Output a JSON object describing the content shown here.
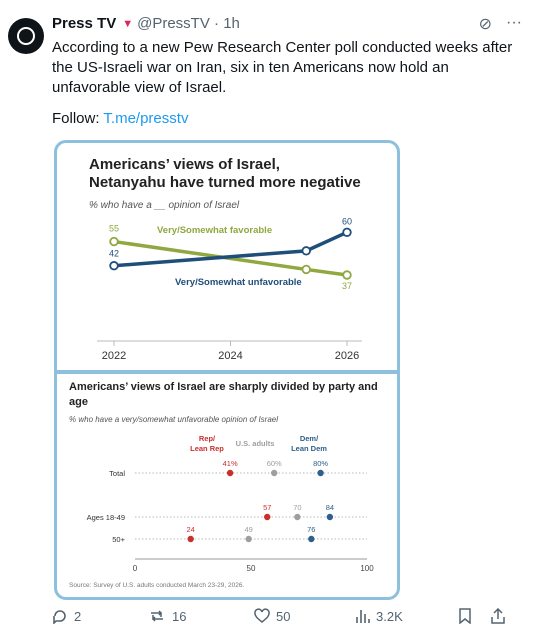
{
  "tweet": {
    "author_name": "Press TV",
    "handle": "@PressTV",
    "time": "1h",
    "text": "According to a new Pew Research Center poll conducted weeks after the US-Israeli war on Iran, six in ten Americans now hold an unfavorable view of Israel.",
    "follow_label": "Follow:",
    "follow_link": "T.me/presstv"
  },
  "actions": {
    "replies": "2",
    "reposts": "16",
    "likes": "50",
    "views": "3.2K"
  },
  "chart_data": [
    {
      "type": "line",
      "title": "Americans’ views of Israel, Netanyahu have turned more negative",
      "subtitle": "% who have a __ opinion of Israel",
      "x": [
        2022,
        2025.3,
        2026
      ],
      "xticks": [
        2022,
        2024,
        2026
      ],
      "series": [
        {
          "name": "Very/Somewhat favorable",
          "values": [
            55,
            40,
            37
          ],
          "labels": [
            "55",
            "",
            "37"
          ],
          "color": "#8fa840"
        },
        {
          "name": "Very/Somewhat unfavorable",
          "values": [
            42,
            50,
            60
          ],
          "labels": [
            "42",
            "",
            "60"
          ],
          "color": "#1f4e79"
        }
      ],
      "ylim": [
        30,
        65
      ],
      "grid": false
    },
    {
      "type": "scatter",
      "title": "Americans’ views of Israel are sharply divided by party and age",
      "subtitle": "% who have a very/somewhat unfavorable opinion of Israel",
      "legend": [
        "Rep/ Lean Rep",
        "U.S. adults",
        "Dem/ Lean Dem"
      ],
      "series_colors": [
        "#c9302c",
        "#9e9e9e",
        "#2f5f8a"
      ],
      "categories": [
        "Total",
        "Ages 18-49",
        "50+"
      ],
      "series": [
        {
          "name": "Rep/ Lean Rep",
          "values": [
            41,
            57,
            24
          ],
          "labels": [
            "41%",
            "57",
            "24"
          ]
        },
        {
          "name": "U.S. adults",
          "values": [
            60,
            70,
            49
          ],
          "labels": [
            "60%",
            "70",
            "49"
          ]
        },
        {
          "name": "Dem/ Lean Dem",
          "values": [
            80,
            84,
            76
          ],
          "labels": [
            "80%",
            "84",
            "76"
          ]
        }
      ],
      "xticks": [
        0,
        50,
        100
      ],
      "xlim": [
        0,
        100
      ],
      "source": "Source: Survey of U.S. adults conducted March 23-29, 2026."
    }
  ]
}
